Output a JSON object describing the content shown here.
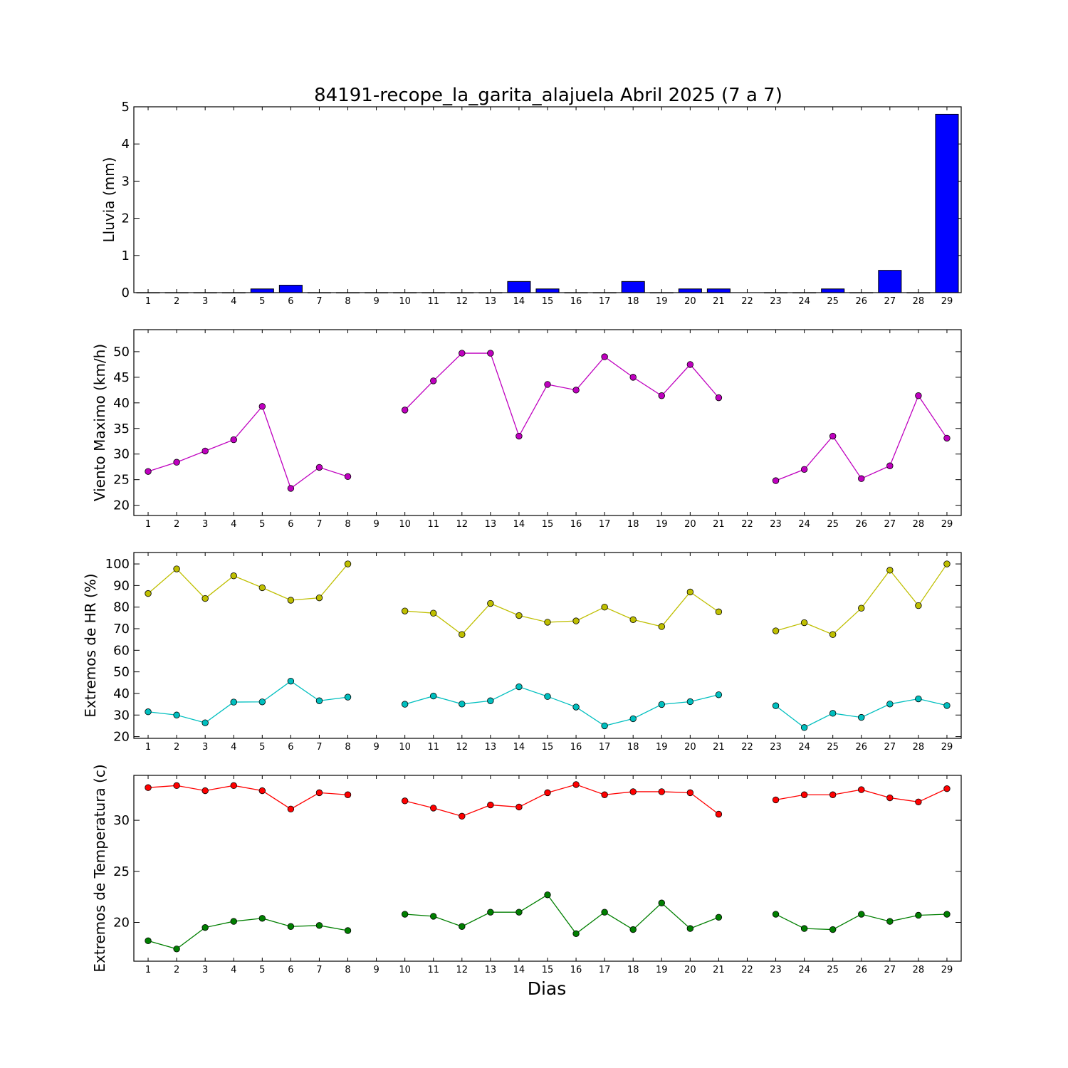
{
  "chart_data": [
    {
      "type": "bar",
      "title": "84191-recope_la_garita_alajuela Abril 2025  (7 a 7)",
      "ylabel": "Lluvia (mm)",
      "xlabel": "",
      "categories": [
        "1",
        "2",
        "3",
        "4",
        "5",
        "6",
        "7",
        "8",
        "9",
        "10",
        "11",
        "12",
        "13",
        "14",
        "15",
        "16",
        "17",
        "18",
        "19",
        "20",
        "21",
        "22",
        "23",
        "24",
        "25",
        "26",
        "27",
        "28",
        "29"
      ],
      "values": [
        0,
        0,
        0,
        0,
        0.1,
        0.2,
        0,
        0,
        0,
        0,
        0,
        0,
        0,
        0.3,
        0.1,
        0,
        0,
        0.3,
        0,
        0.1,
        0.1,
        null,
        0,
        0,
        0.1,
        0,
        0.6,
        0,
        4.8
      ],
      "ylim": [
        0,
        5
      ],
      "yticks": [
        0,
        1,
        2,
        3,
        4,
        5
      ],
      "color": "#0000ff"
    },
    {
      "type": "line",
      "title": "",
      "ylabel": "Viento Maximo (km/h)",
      "xlabel": "",
      "categories": [
        "1",
        "2",
        "3",
        "4",
        "5",
        "6",
        "7",
        "8",
        "9",
        "10",
        "11",
        "12",
        "13",
        "14",
        "15",
        "16",
        "17",
        "18",
        "19",
        "20",
        "21",
        "22",
        "23",
        "24",
        "25",
        "26",
        "27",
        "28",
        "29"
      ],
      "series": [
        {
          "color": "#bf00bf",
          "values": [
            26.6,
            28.4,
            30.6,
            32.8,
            39.3,
            23.3,
            27.4,
            25.6,
            null,
            38.6,
            44.3,
            49.7,
            49.7,
            33.5,
            43.6,
            42.5,
            49.0,
            45.0,
            41.4,
            47.5,
            41.0,
            null,
            24.8,
            27.0,
            33.5,
            25.2,
            27.7,
            41.4,
            33.1
          ]
        }
      ],
      "ylim": [
        18,
        54.3
      ],
      "yticks": [
        20,
        25,
        30,
        35,
        40,
        45,
        50
      ]
    },
    {
      "type": "line",
      "title": "",
      "ylabel": "Extremos de HR (%)",
      "xlabel": "",
      "categories": [
        "1",
        "2",
        "3",
        "4",
        "5",
        "6",
        "7",
        "8",
        "9",
        "10",
        "11",
        "12",
        "13",
        "14",
        "15",
        "16",
        "17",
        "18",
        "19",
        "20",
        "21",
        "22",
        "23",
        "24",
        "25",
        "26",
        "27",
        "28",
        "29"
      ],
      "series": [
        {
          "color": "#bfbf00",
          "values": [
            86.3,
            97.7,
            84.0,
            94.5,
            89.0,
            83.2,
            84.3,
            100,
            null,
            78.2,
            77.2,
            67.3,
            81.7,
            76.1,
            73.0,
            73.6,
            80.0,
            74.2,
            71.0,
            87.0,
            77.8,
            null,
            69.0,
            72.8,
            67.3,
            79.5,
            97.1,
            80.7,
            100
          ]
        },
        {
          "color": "#00bfbf",
          "values": [
            31.5,
            30.0,
            26.4,
            36.0,
            36.1,
            45.7,
            36.6,
            38.3,
            null,
            35.0,
            38.8,
            35.1,
            36.6,
            43.1,
            38.6,
            33.7,
            25.0,
            28.3,
            34.9,
            36.2,
            39.4,
            null,
            34.3,
            24.2,
            30.8,
            28.9,
            35.1,
            37.5,
            34.4
          ]
        }
      ],
      "ylim": [
        19.2,
        105.3
      ],
      "yticks": [
        20,
        30,
        40,
        50,
        60,
        70,
        80,
        90,
        100
      ]
    },
    {
      "type": "line",
      "title": "",
      "ylabel": "Extremos de Temperatura (c)",
      "xlabel": "Dias",
      "categories": [
        "1",
        "2",
        "3",
        "4",
        "5",
        "6",
        "7",
        "8",
        "9",
        "10",
        "11",
        "12",
        "13",
        "14",
        "15",
        "16",
        "17",
        "18",
        "19",
        "20",
        "21",
        "22",
        "23",
        "24",
        "25",
        "26",
        "27",
        "28",
        "29"
      ],
      "series": [
        {
          "color": "#ff0000",
          "values": [
            33.2,
            33.4,
            32.9,
            33.4,
            32.9,
            31.1,
            32.7,
            32.5,
            null,
            31.9,
            31.2,
            30.4,
            31.5,
            31.3,
            32.7,
            33.5,
            32.5,
            32.8,
            32.8,
            32.7,
            30.6,
            null,
            32.0,
            32.5,
            32.5,
            33.0,
            32.2,
            31.8,
            33.1
          ]
        },
        {
          "color": "#007f00",
          "values": [
            18.2,
            17.4,
            19.5,
            20.1,
            20.4,
            19.6,
            19.7,
            19.2,
            null,
            20.8,
            20.6,
            19.6,
            21.0,
            21.0,
            22.7,
            18.9,
            21.0,
            19.3,
            21.9,
            19.4,
            20.5,
            null,
            20.8,
            19.4,
            19.3,
            20.8,
            20.1,
            20.7,
            20.8
          ]
        }
      ],
      "ylim": [
        16.2,
        34.4
      ],
      "yticks": [
        20,
        25,
        30
      ]
    }
  ]
}
